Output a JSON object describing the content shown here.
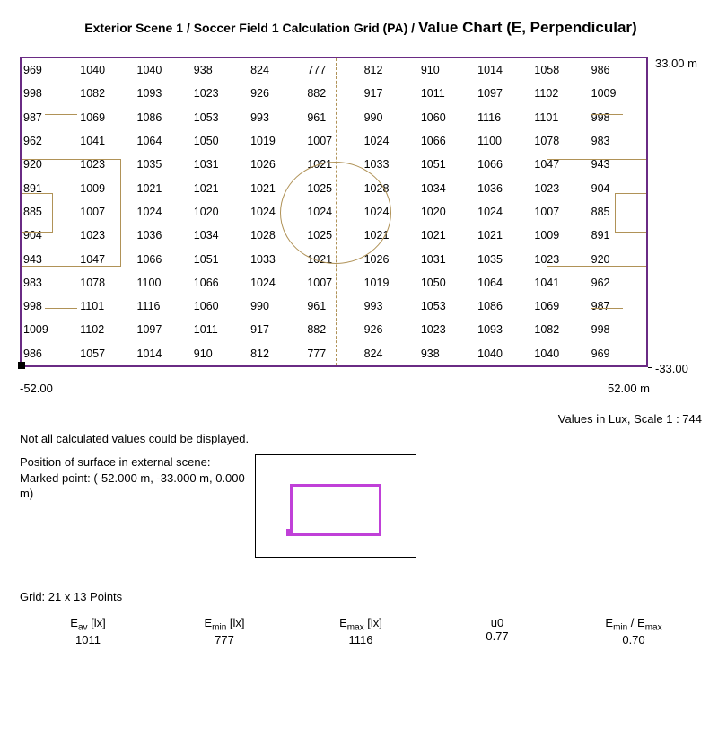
{
  "title_plain": "Exterior Scene 1 / Soccer Field 1 Calculation Grid (PA) / ",
  "title_em": "Value Chart (E, Perpendicular)",
  "grid": {
    "cols": 11,
    "rows": 13,
    "values": [
      [
        969,
        1040,
        1040,
        938,
        824,
        777,
        812,
        910,
        1014,
        1058,
        986
      ],
      [
        998,
        1082,
        1093,
        1023,
        926,
        882,
        917,
        1011,
        1097,
        1102,
        1009
      ],
      [
        987,
        1069,
        1086,
        1053,
        993,
        961,
        990,
        1060,
        1116,
        1101,
        998
      ],
      [
        962,
        1041,
        1064,
        1050,
        1019,
        1007,
        1024,
        1066,
        1100,
        1078,
        983
      ],
      [
        920,
        1023,
        1035,
        1031,
        1026,
        1021,
        1033,
        1051,
        1066,
        1047,
        943
      ],
      [
        891,
        1009,
        1021,
        1021,
        1021,
        1025,
        1028,
        1034,
        1036,
        1023,
        904
      ],
      [
        885,
        1007,
        1024,
        1020,
        1024,
        1024,
        1024,
        1020,
        1024,
        1007,
        885
      ],
      [
        904,
        1023,
        1036,
        1034,
        1028,
        1025,
        1021,
        1021,
        1021,
        1009,
        891
      ],
      [
        943,
        1047,
        1066,
        1051,
        1033,
        1021,
        1026,
        1031,
        1035,
        1023,
        920
      ],
      [
        983,
        1078,
        1100,
        1066,
        1024,
        1007,
        1019,
        1050,
        1064,
        1041,
        962
      ],
      [
        998,
        1101,
        1116,
        1060,
        990,
        961,
        993,
        1053,
        1086,
        1069,
        987
      ],
      [
        1009,
        1102,
        1097,
        1011,
        917,
        882,
        926,
        1023,
        1093,
        1082,
        998
      ],
      [
        986,
        1057,
        1014,
        910,
        812,
        777,
        824,
        938,
        1040,
        1040,
        969
      ]
    ],
    "field_line_color": "#b09257",
    "border_color": "#6a2b84",
    "cell_fontsize": 12.5
  },
  "axes": {
    "y_top": "33.00 m",
    "y_bottom": "-33.00",
    "x_left": "-52.00",
    "x_right": "52.00 m",
    "scale_label": "Values in Lux, Scale 1 : 744"
  },
  "note": "Not all calculated values could be displayed.",
  "position": {
    "heading": "Position of surface in external scene:",
    "marked_label": "Marked point: (-52.000 m, -33.000 m, 0.000 m)",
    "thumb_rect_color": "#c040d8",
    "thumb_border_color": "#000000"
  },
  "grid_label": "Grid: 21 x 13 Points",
  "stats": [
    {
      "label": "E<sub>av</sub> [lx]",
      "value": "1011"
    },
    {
      "label": "E<sub>min</sub> [lx]",
      "value": "777"
    },
    {
      "label": "E<sub>max</sub> [lx]",
      "value": "1116"
    },
    {
      "label": "u0",
      "value": "0.77"
    },
    {
      "label": "E<sub>min</sub> / E<sub>max</sub>",
      "value": "0.70"
    }
  ]
}
